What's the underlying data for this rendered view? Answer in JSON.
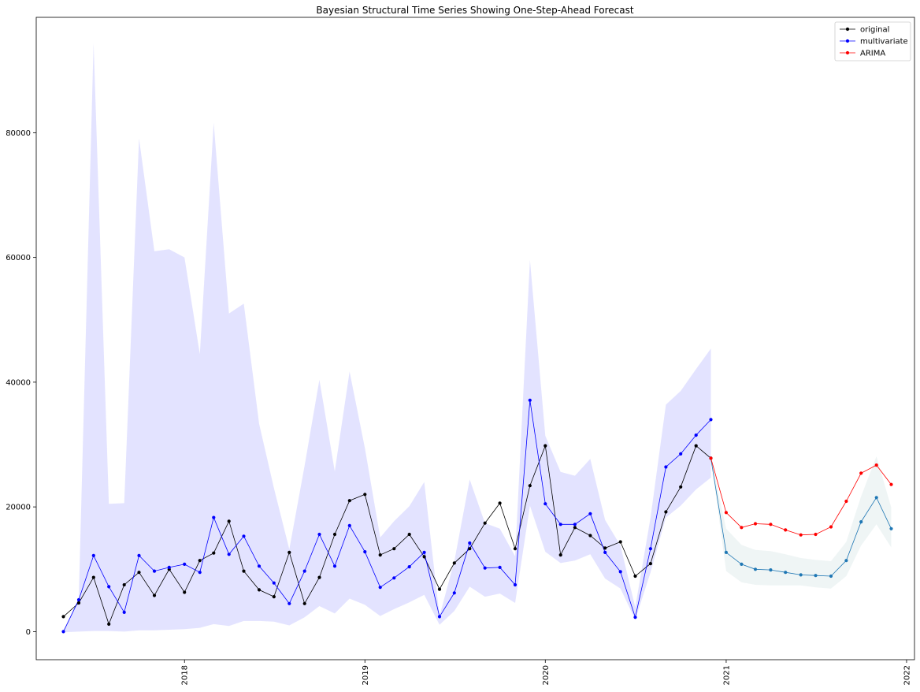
{
  "chart_data": {
    "type": "line",
    "title": "Bayesian Structural Time Series Showing One-Step-Ahead Forecast",
    "xlabel": "",
    "ylabel": "",
    "xlim": [
      "2017-03-07",
      "2022-01-17"
    ],
    "ylim": [
      -4500,
      98500
    ],
    "grid": false,
    "legend_position": "top-right",
    "x_ticks": [
      "2018",
      "2019",
      "2020",
      "2021",
      "2022"
    ],
    "y_ticks": [
      "0",
      "20000",
      "40000",
      "60000",
      "80000"
    ],
    "legend": [
      {
        "label": "original",
        "color": "#000000"
      },
      {
        "label": "multivariate",
        "color": "#0000ff"
      },
      {
        "label": "ARIMA",
        "color": "#ff0000"
      }
    ],
    "series": [
      {
        "name": "original",
        "color": "#000000",
        "x": [
          "2017-05",
          "2017-06",
          "2017-07",
          "2017-08",
          "2017-09",
          "2017-10",
          "2017-11",
          "2017-12",
          "2018-01",
          "2018-02",
          "2018-03",
          "2018-04",
          "2018-05",
          "2018-06",
          "2018-07",
          "2018-08",
          "2018-09",
          "2018-10",
          "2018-11",
          "2018-12",
          "2019-01",
          "2019-02",
          "2019-03",
          "2019-04",
          "2019-05",
          "2019-06",
          "2019-07",
          "2019-08",
          "2019-09",
          "2019-10",
          "2019-11",
          "2019-12",
          "2020-01",
          "2020-02",
          "2020-03",
          "2020-04",
          "2020-05",
          "2020-06",
          "2020-07",
          "2020-08",
          "2020-09",
          "2020-10",
          "2020-11",
          "2020-12"
        ],
        "y": [
          2400,
          4600,
          8700,
          1200,
          7500,
          9500,
          5800,
          10000,
          6300,
          11400,
          12600,
          17700,
          9700,
          6700,
          5600,
          12700,
          4500,
          8700,
          15600,
          21000,
          22000,
          12300,
          13300,
          15600,
          12000,
          6800,
          11000,
          13300,
          17400,
          20600,
          13300,
          23400,
          29800,
          12300,
          16700,
          15400,
          13400,
          14400,
          8900,
          10900,
          19200,
          23200,
          29800,
          27800
        ]
      },
      {
        "name": "multivariate",
        "color": "#0000ff",
        "x": [
          "2017-05",
          "2017-06",
          "2017-07",
          "2017-08",
          "2017-09",
          "2017-10",
          "2017-11",
          "2017-12",
          "2018-01",
          "2018-02",
          "2018-03",
          "2018-04",
          "2018-05",
          "2018-06",
          "2018-07",
          "2018-08",
          "2018-09",
          "2018-10",
          "2018-11",
          "2018-12",
          "2019-01",
          "2019-02",
          "2019-03",
          "2019-04",
          "2019-05",
          "2019-06",
          "2019-07",
          "2019-08",
          "2019-09",
          "2019-10",
          "2019-11",
          "2019-12",
          "2020-01",
          "2020-02",
          "2020-03",
          "2020-04",
          "2020-05",
          "2020-06",
          "2020-07",
          "2020-08",
          "2020-09",
          "2020-10",
          "2020-11",
          "2020-12"
        ],
        "y": [
          0,
          5100,
          12200,
          7200,
          3100,
          12200,
          9700,
          10300,
          10800,
          9500,
          18300,
          12400,
          15300,
          10500,
          7800,
          4500,
          9700,
          15600,
          10500,
          17000,
          12800,
          7100,
          8600,
          10400,
          12700,
          2400,
          6200,
          14200,
          10200,
          10300,
          7500,
          37100,
          20500,
          17200,
          17200,
          18900,
          12700,
          9600,
          2300,
          13300,
          26400,
          28500,
          31500,
          34000
        ],
        "lower": [
          -100,
          0,
          100,
          100,
          0,
          200,
          200,
          300,
          400,
          600,
          1200,
          900,
          1700,
          1700,
          1600,
          1000,
          2300,
          4100,
          2900,
          5300,
          4300,
          2500,
          3600,
          4700,
          5900,
          1100,
          3300,
          7200,
          5600,
          6100,
          4600,
          20200,
          12800,
          11000,
          11400,
          12400,
          8500,
          6900,
          1900,
          9500,
          18300,
          20200,
          22800,
          24700
        ],
        "upper": [
          0,
          5400,
          94400,
          20500,
          20600,
          79100,
          61000,
          61300,
          60000,
          44500,
          81600,
          51000,
          52600,
          33300,
          23000,
          13200,
          26600,
          40400,
          25700,
          41700,
          29400,
          15100,
          17700,
          20100,
          24000,
          2500,
          11300,
          24400,
          17400,
          16500,
          12100,
          59600,
          31400,
          25600,
          25000,
          27700,
          17900,
          13800,
          3900,
          18300,
          36400,
          38600,
          42100,
          45400
        ]
      },
      {
        "name": "",
        "color": "#1f77b4",
        "x": [
          "2020-12",
          "2021-01",
          "2021-02",
          "2021-03",
          "2021-04",
          "2021-05",
          "2021-06",
          "2021-07",
          "2021-08",
          "2021-09",
          "2021-10",
          "2021-11",
          "2021-12"
        ],
        "y": [
          27800,
          12700,
          10800,
          10000,
          9900,
          9500,
          9100,
          9000,
          8900,
          11400,
          17600,
          21500,
          16500
        ],
        "lower": [
          27800,
          9700,
          7900,
          7500,
          7400,
          7400,
          7400,
          7100,
          6900,
          8900,
          13800,
          17200,
          13500
        ],
        "upper": [
          27800,
          16500,
          13900,
          13100,
          12900,
          12400,
          11800,
          11500,
          11300,
          14400,
          21700,
          28100,
          19900
        ]
      },
      {
        "name": "ARIMA",
        "color": "#ff0000",
        "x": [
          "2020-12",
          "2021-01",
          "2021-02",
          "2021-03",
          "2021-04",
          "2021-05",
          "2021-06",
          "2021-07",
          "2021-08",
          "2021-09",
          "2021-10",
          "2021-11",
          "2021-12"
        ],
        "y": [
          27800,
          19100,
          16700,
          17300,
          17200,
          16300,
          15500,
          15600,
          16800,
          20900,
          25400,
          26700,
          23600
        ]
      }
    ]
  }
}
